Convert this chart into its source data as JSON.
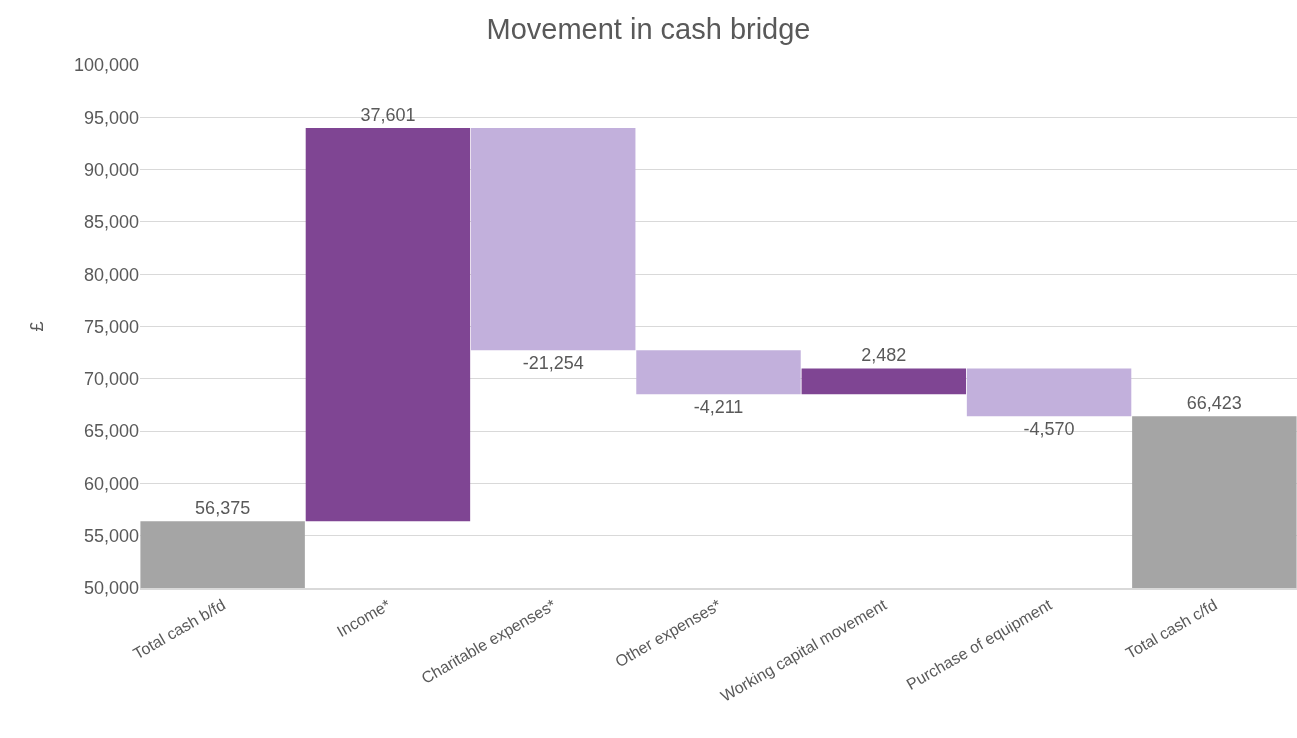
{
  "chart_data": {
    "type": "bar",
    "title": "Movement in cash bridge",
    "ylabel": "£",
    "categories": [
      "Total cash b/fd",
      "Income*",
      "Charitable expenses*",
      "Other expenses*",
      "Working capital movement",
      "Purchase of equipment",
      "Total cash c/fd"
    ],
    "values": [
      56375,
      37601,
      -21254,
      -4211,
      2482,
      -4570,
      66423
    ],
    "base": [
      null,
      56375,
      93976,
      72722,
      68511,
      70993,
      null
    ],
    "colors": [
      "#a5a5a5",
      "#7f4593",
      "#c2b0dc",
      "#c2b0dc",
      "#7f4593",
      "#c2b0dc",
      "#a5a5a5"
    ],
    "ylim": [
      50000,
      100000
    ],
    "yticks": [
      {
        "value": 50000,
        "label": "50,000"
      },
      {
        "value": 55000,
        "label": "55,000"
      },
      {
        "value": 60000,
        "label": "60,000"
      },
      {
        "value": 65000,
        "label": "65,000"
      },
      {
        "value": 70000,
        "label": "70,000"
      },
      {
        "value": 75000,
        "label": "75,000"
      },
      {
        "value": 80000,
        "label": "80,000"
      },
      {
        "value": 85000,
        "label": "85,000"
      },
      {
        "value": 90000,
        "label": "90,000"
      },
      {
        "value": 95000,
        "label": "95,000"
      },
      {
        "value": 100000,
        "label": "100,000"
      }
    ],
    "value_labels": [
      "56,375",
      "37,601",
      "-21,254",
      "-4,211",
      "2,482",
      "-4,570",
      "66,423"
    ],
    "grid": "y"
  }
}
